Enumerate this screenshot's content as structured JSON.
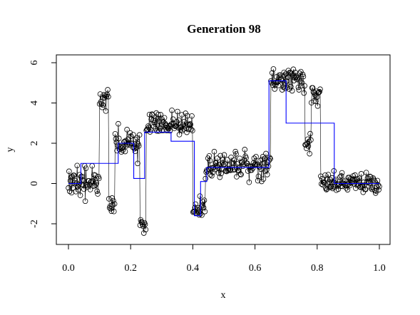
{
  "chart_data": {
    "type": "scatter",
    "title": "Generation 98",
    "xlabel": "x",
    "ylabel": "y",
    "xlim": [
      0,
      1
    ],
    "ylim": [
      -3.1,
      6.3
    ],
    "grid": false,
    "x_ticks": [
      0.0,
      0.2,
      0.4,
      0.6,
      0.8,
      1.0
    ],
    "x_tick_labels": [
      "0.0",
      "0.2",
      "0.4",
      "0.6",
      "0.8",
      "1.0"
    ],
    "y_ticks": [
      -2,
      0,
      2,
      4,
      6
    ],
    "y_tick_labels": [
      "-2",
      "0",
      "2",
      "4",
      "6"
    ],
    "segments": [
      {
        "x0": 0.0,
        "x1": 0.1,
        "mean": 0.0,
        "sd": 0.33
      },
      {
        "x0": 0.1,
        "x1": 0.13,
        "mean": 4.1,
        "sd": 0.25
      },
      {
        "x0": 0.13,
        "x1": 0.15,
        "mean": -1.0,
        "sd": 0.3
      },
      {
        "x0": 0.15,
        "x1": 0.23,
        "mean": 1.9,
        "sd": 0.3
      },
      {
        "x0": 0.23,
        "x1": 0.25,
        "mean": -2.1,
        "sd": 0.25
      },
      {
        "x0": 0.25,
        "x1": 0.4,
        "mean": 3.0,
        "sd": 0.3
      },
      {
        "x0": 0.4,
        "x1": 0.44,
        "mean": -1.3,
        "sd": 0.3
      },
      {
        "x0": 0.44,
        "x1": 0.65,
        "mean": 0.9,
        "sd": 0.3
      },
      {
        "x0": 0.65,
        "x1": 0.76,
        "mean": 5.1,
        "sd": 0.3
      },
      {
        "x0": 0.76,
        "x1": 0.78,
        "mean": 2.1,
        "sd": 0.3
      },
      {
        "x0": 0.78,
        "x1": 0.81,
        "mean": 4.3,
        "sd": 0.3
      },
      {
        "x0": 0.81,
        "x1": 1.0,
        "mean": 0.0,
        "sd": 0.25
      }
    ],
    "n_points": 500,
    "point_color": "#000000",
    "series": [
      {
        "name": "",
        "type": "step",
        "color": "#0000ff",
        "steps": [
          {
            "x0": 0.0,
            "x1": 0.04,
            "y": 0.0
          },
          {
            "x0": 0.04,
            "x1": 0.16,
            "y": 1.0
          },
          {
            "x0": 0.16,
            "x1": 0.21,
            "y": 2.0
          },
          {
            "x0": 0.21,
            "x1": 0.245,
            "y": 0.25
          },
          {
            "x0": 0.245,
            "x1": 0.33,
            "y": 2.55
          },
          {
            "x0": 0.33,
            "x1": 0.405,
            "y": 2.1
          },
          {
            "x0": 0.405,
            "x1": 0.425,
            "y": -1.6
          },
          {
            "x0": 0.425,
            "x1": 0.445,
            "y": 0.1
          },
          {
            "x0": 0.445,
            "x1": 0.645,
            "y": 0.8
          },
          {
            "x0": 0.645,
            "x1": 0.7,
            "y": 5.1
          },
          {
            "x0": 0.7,
            "x1": 0.855,
            "y": 3.0
          },
          {
            "x0": 0.855,
            "x1": 1.0,
            "y": 0.0
          }
        ]
      }
    ]
  }
}
